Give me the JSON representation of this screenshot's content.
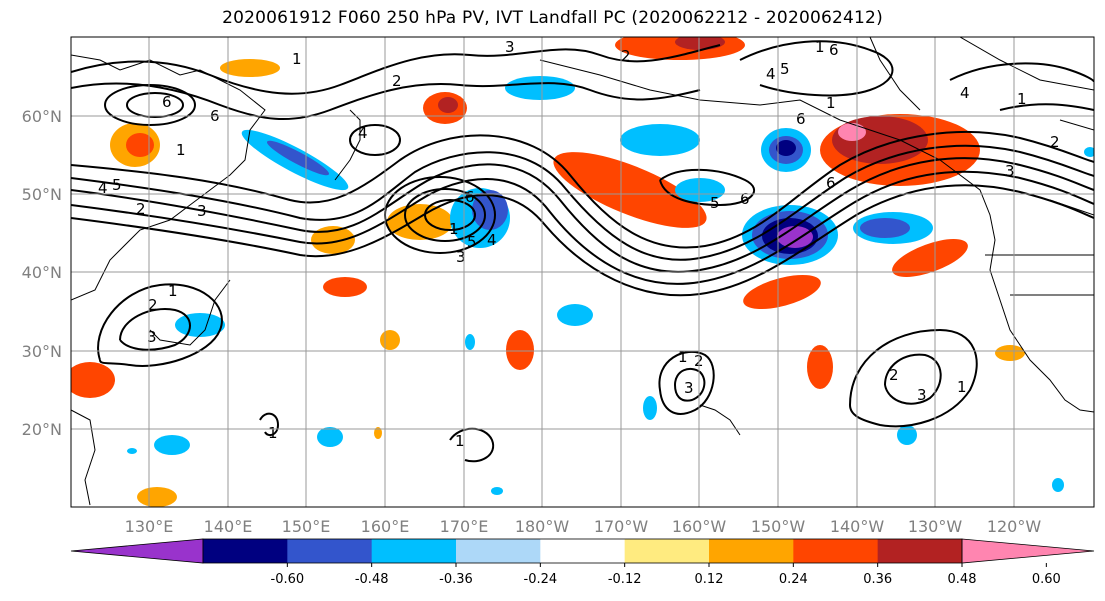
{
  "title": "2020061912 F060 250 hPa PV, IVT Landfall PC (2020062212 - 2020062412)",
  "map": {
    "lon_ticks": [
      "130°E",
      "140°E",
      "150°E",
      "160°E",
      "170°E",
      "180°W",
      "170°W",
      "160°W",
      "150°W",
      "140°W",
      "130°W",
      "120°W"
    ],
    "lat_ticks": [
      "60°N",
      "50°N",
      "40°N",
      "30°N",
      "20°N"
    ],
    "contour_labels": [
      "1",
      "2",
      "3",
      "4",
      "5",
      "6"
    ]
  },
  "colorbar": {
    "colors": [
      "#9933cc",
      "#000080",
      "#3355cc",
      "#00bfff",
      "#add8f8",
      "#ffffff",
      "#ffeb80",
      "#ffa500",
      "#ff4500",
      "#b22222",
      "#ff85b0"
    ],
    "tick_labels": [
      "-0.60",
      "-0.48",
      "-0.36",
      "-0.24",
      "-0.12",
      "0.12",
      "0.24",
      "0.36",
      "0.48",
      "0.60"
    ]
  }
}
